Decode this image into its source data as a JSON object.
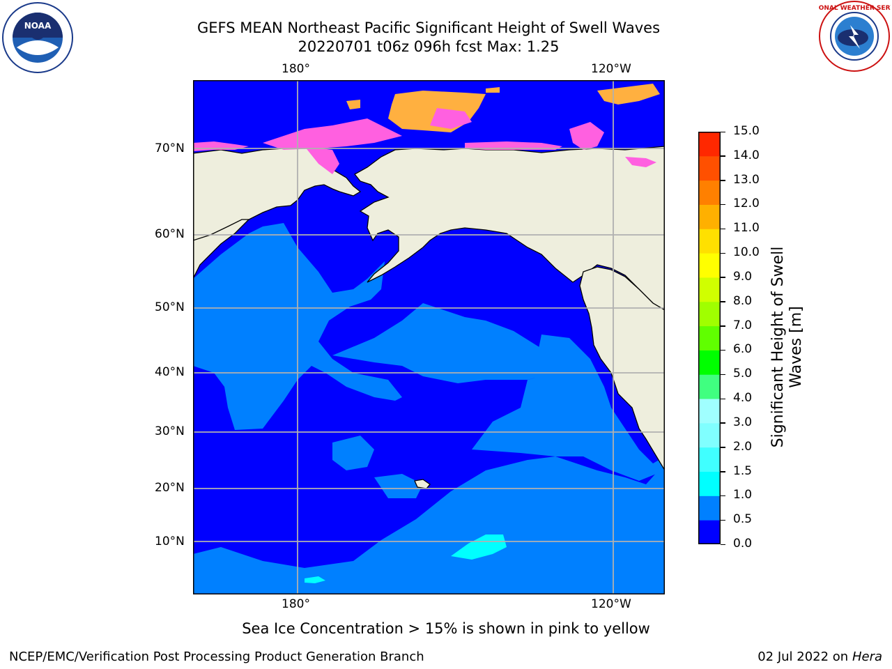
{
  "title": {
    "line1": "GEFS MEAN Northeast Pacific Significant Height of Swell Waves",
    "line2": "20220701 t06z 096h fcst   Max: 1.25"
  },
  "logos": {
    "left_text": "NOAA",
    "right_text": "NATIONAL WEATHER SERVICE"
  },
  "map": {
    "top_ticks": [
      "180°",
      "120°W"
    ],
    "bottom_ticks": [
      "180°",
      "120°W"
    ],
    "lat_ticks": [
      "70°N",
      "60°N",
      "50°N",
      "40°N",
      "30°N",
      "20°N",
      "10°N"
    ],
    "colors": {
      "ocean_base": "#0000ff",
      "swell_0_5_1": "#0080ff",
      "swell_1_1_5": "#00ffff",
      "land": "#eeeedd",
      "ice_pink": "#ff60e0",
      "ice_orange": "#ffb040",
      "grid": "#b0b0b0"
    }
  },
  "colorbar": {
    "title": "Significant Height of Swell Waves [m]",
    "tick_labels": [
      "0.0",
      "0.5",
      "1.0",
      "1.5",
      "2.0",
      "3.0",
      "4.0",
      "5.0",
      "6.0",
      "7.0",
      "8.0",
      "9.0",
      "10.0",
      "11.0",
      "12.0",
      "13.0",
      "14.0",
      "15.0"
    ],
    "colors": [
      "#0000ff",
      "#0080ff",
      "#00ffff",
      "#40ffff",
      "#80ffff",
      "#a0ffff",
      "#40ff80",
      "#00ff00",
      "#60ff00",
      "#a0ff00",
      "#d0ff00",
      "#ffff00",
      "#ffe000",
      "#ffb000",
      "#ff8000",
      "#ff5000",
      "#ff2800",
      "#ff0000"
    ]
  },
  "caption": "Sea Ice Concentration > 15% is shown in pink to yellow",
  "footer": {
    "left": "NCEP/EMC/Verification Post Processing Product Generation Branch",
    "right_date": "02 Jul 2022 on ",
    "right_host": "Hera"
  }
}
